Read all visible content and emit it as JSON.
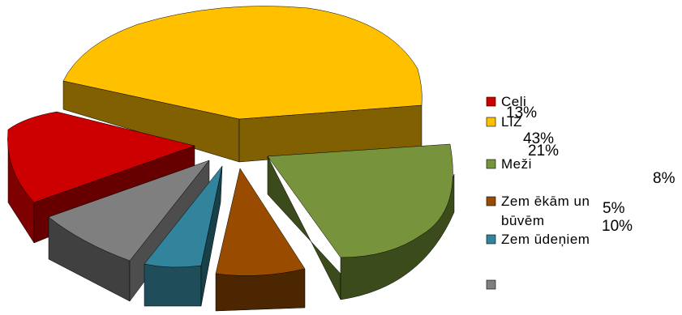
{
  "chart_data": {
    "type": "pie",
    "exploded_3d": true,
    "legend_position": "right",
    "series": [
      {
        "legend": "Ceļi",
        "label": "13%",
        "value": 13,
        "color": "#CC0000"
      },
      {
        "legend": "LIZ",
        "label": "43%",
        "value": 43,
        "color": "#FFC000"
      },
      {
        "legend": "Meži",
        "label": "21%",
        "value": 21,
        "color": "#77933C"
      },
      {
        "legend": "Zem ēkām un",
        "legend_line2": "būvēm",
        "label": "5%",
        "value": 5,
        "color": "#994C00"
      },
      {
        "legend": "Zem ūdeņiem",
        "label": "10%",
        "value": 10,
        "color": "#31849B"
      },
      {
        "legend": "",
        "label": "8%",
        "value": 8,
        "color": "#7F7F7F"
      }
    ]
  }
}
